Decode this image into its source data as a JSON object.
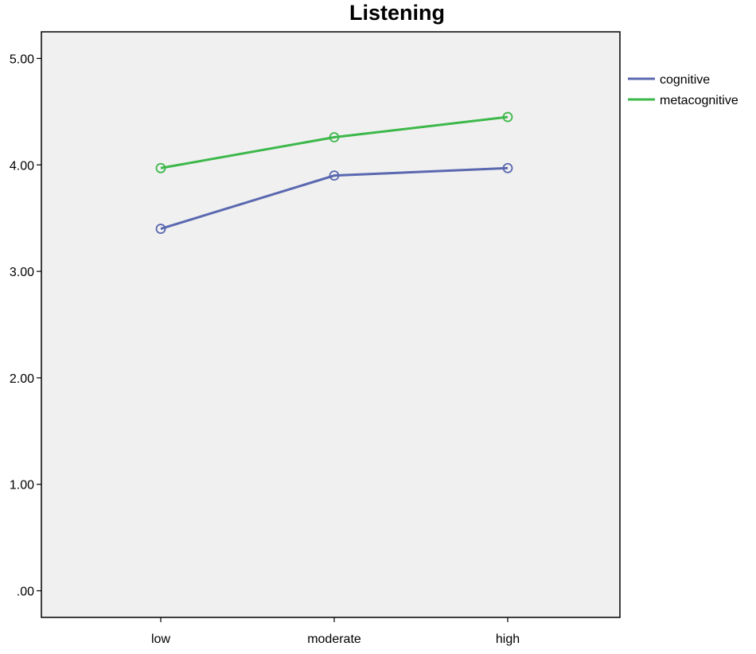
{
  "chart_data": {
    "type": "line",
    "title": "Listening",
    "xlabel": "",
    "ylabel": "",
    "categories": [
      "low",
      "moderate",
      "high"
    ],
    "yticks": [
      ".00",
      "1.00",
      "2.00",
      "3.00",
      "4.00",
      "5.00"
    ],
    "ylim": [
      -0.25,
      5.25
    ],
    "grid": false,
    "legend_position": "right",
    "background_color": "#f0f0f0",
    "series": [
      {
        "name": "cognitive",
        "color": "#5a68b0",
        "values": [
          3.4,
          3.9,
          3.97
        ],
        "marker": "circle-open"
      },
      {
        "name": "metacognitive",
        "color": "#3cb84a",
        "values": [
          3.97,
          4.26,
          4.45
        ],
        "marker": "circle-open"
      }
    ]
  }
}
